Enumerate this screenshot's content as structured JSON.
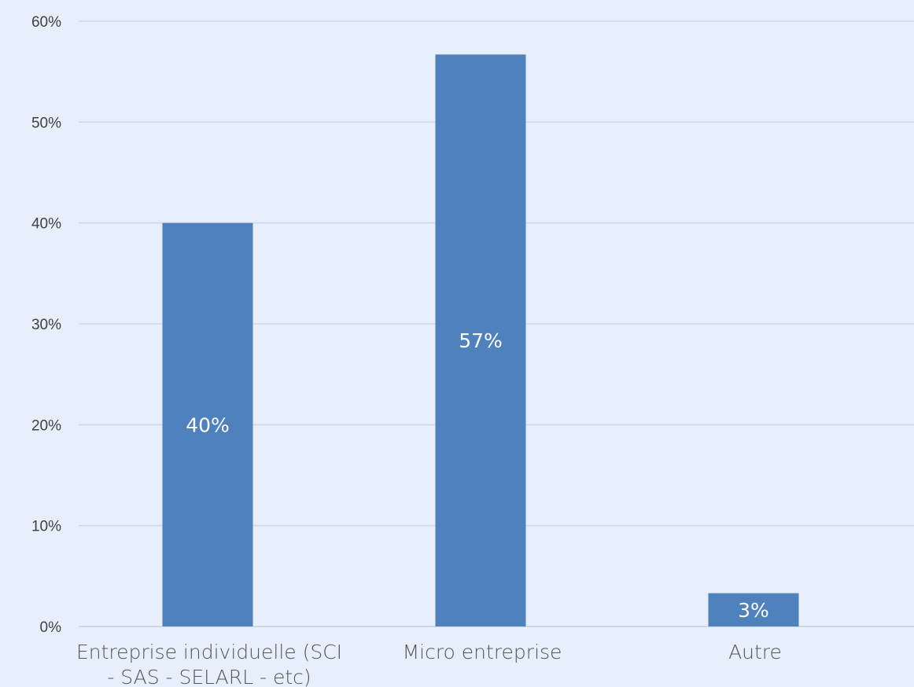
{
  "chart_data": {
    "type": "bar",
    "title": "",
    "xlabel": "",
    "ylabel": "",
    "categories": [
      [
        "Entreprise individuelle (SCI",
        "- SAS - SELARL - etc)"
      ],
      [
        "Micro entreprise"
      ],
      [
        "Autre"
      ]
    ],
    "values": [
      40,
      56.7,
      3.3
    ],
    "data_labels": [
      "40%",
      "57%",
      "3%"
    ],
    "y_ticks": [
      "0%",
      "10%",
      "20%",
      "30%",
      "40%",
      "50%",
      "60%"
    ],
    "ylim": [
      0,
      60
    ],
    "grid": true,
    "legend": "none",
    "bar_color": "#4f81bd",
    "background_color": "#e8effc"
  }
}
